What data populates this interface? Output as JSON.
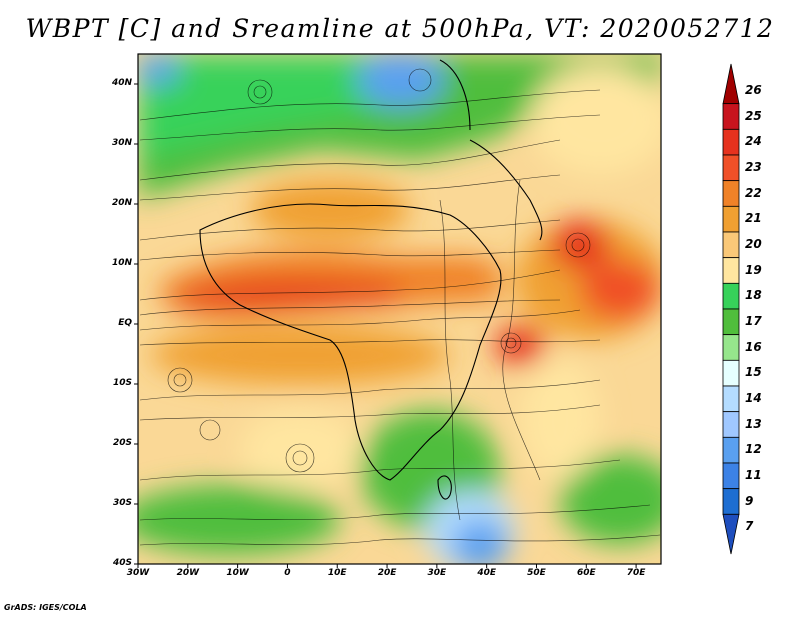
{
  "title": "WBPT [C] and Sreamline at 500hPa, VT: 2020052712",
  "credit": "GrADS: IGES/COLA",
  "y_axis": {
    "labels": [
      "40N",
      "30N",
      "20N",
      "10N",
      "EQ",
      "10S",
      "20S",
      "30S",
      "40S"
    ],
    "latitudes": [
      40,
      30,
      20,
      10,
      0,
      -10,
      -20,
      -30,
      -40
    ],
    "range": [
      -40,
      45
    ]
  },
  "x_axis": {
    "labels": [
      "30W",
      "20W",
      "10W",
      "0",
      "10E",
      "20E",
      "30E",
      "40E",
      "50E",
      "60E",
      "70E"
    ],
    "longitudes": [
      -30,
      -20,
      -10,
      0,
      10,
      20,
      30,
      40,
      50,
      60,
      70
    ],
    "range": [
      -30,
      75
    ]
  },
  "colorbar": {
    "labels": [
      "26",
      "25",
      "24",
      "23",
      "22",
      "21",
      "20",
      "19",
      "18",
      "17",
      "16",
      "15",
      "14",
      "13",
      "12",
      "11",
      "9",
      "7"
    ],
    "colors": [
      "#a00000",
      "#c8141e",
      "#e6321e",
      "#f05028",
      "#f08228",
      "#f0a032",
      "#fac878",
      "#ffe6a0",
      "#37d25a",
      "#50be3c",
      "#96e68c",
      "#e6ffff",
      "#b4dcff",
      "#a0c8ff",
      "#5aa0f0",
      "#3c82e6",
      "#1e6ed2",
      "#1e4ebe"
    ]
  }
}
